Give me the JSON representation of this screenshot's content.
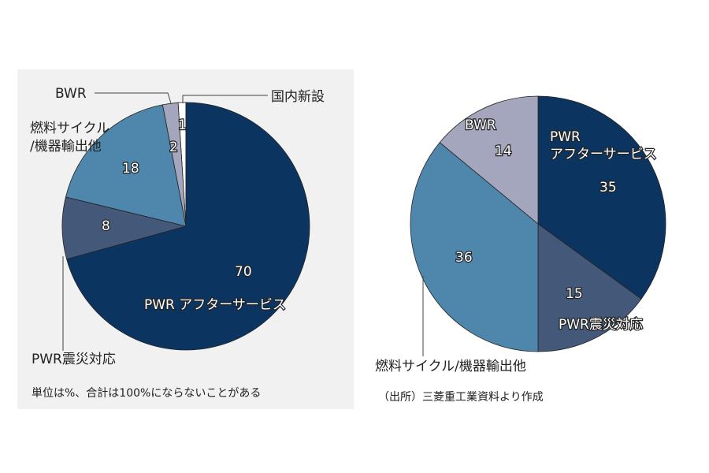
{
  "chart_data": [
    {
      "type": "pie",
      "start": "top",
      "direction": "counterclockwise",
      "slices": [
        {
          "label": "国内新設",
          "value": 1,
          "color": "#ffffff"
        },
        {
          "label": "BWR",
          "value": 2,
          "color": "#a3a6bd"
        },
        {
          "label": "燃料サイクル/機器輸出他",
          "value": 18,
          "color": "#4f86ab"
        },
        {
          "label": "PWR震災対応",
          "value": 8,
          "color": "#44587a"
        },
        {
          "label": "PWR アフターサービス",
          "value": 70,
          "color": "#0b3560"
        }
      ],
      "note": "単位は%、合計は100%にならないことがある",
      "background": "#f1f1f1"
    },
    {
      "type": "pie",
      "start": "top",
      "direction": "clockwise",
      "slices": [
        {
          "label": "PWR アフターサービス",
          "value": 35,
          "color": "#0b3560"
        },
        {
          "label": "PWR震災対応",
          "value": 15,
          "color": "#44587a"
        },
        {
          "label": "燃料サイクル/機器輸出他",
          "value": 36,
          "color": "#4f86ab"
        },
        {
          "label": "BWR",
          "value": 14,
          "color": "#a3a6bd"
        }
      ],
      "note": "（出所）三菱重工業資料より作成"
    }
  ],
  "labels": {
    "left": {
      "kokunai": "国内新設",
      "bwr": "BWR",
      "fuel_1": "燃料サイクル",
      "fuel_2": "/機器輸出他",
      "quake": "PWR震災対応",
      "after": "PWR アフターサービス"
    },
    "right": {
      "bwr": "BWR",
      "after_1": "PWR",
      "after_2": "アフターサービス",
      "quake": "PWR震災対応",
      "fuel": "燃料サイクル/機器輸出他"
    }
  }
}
